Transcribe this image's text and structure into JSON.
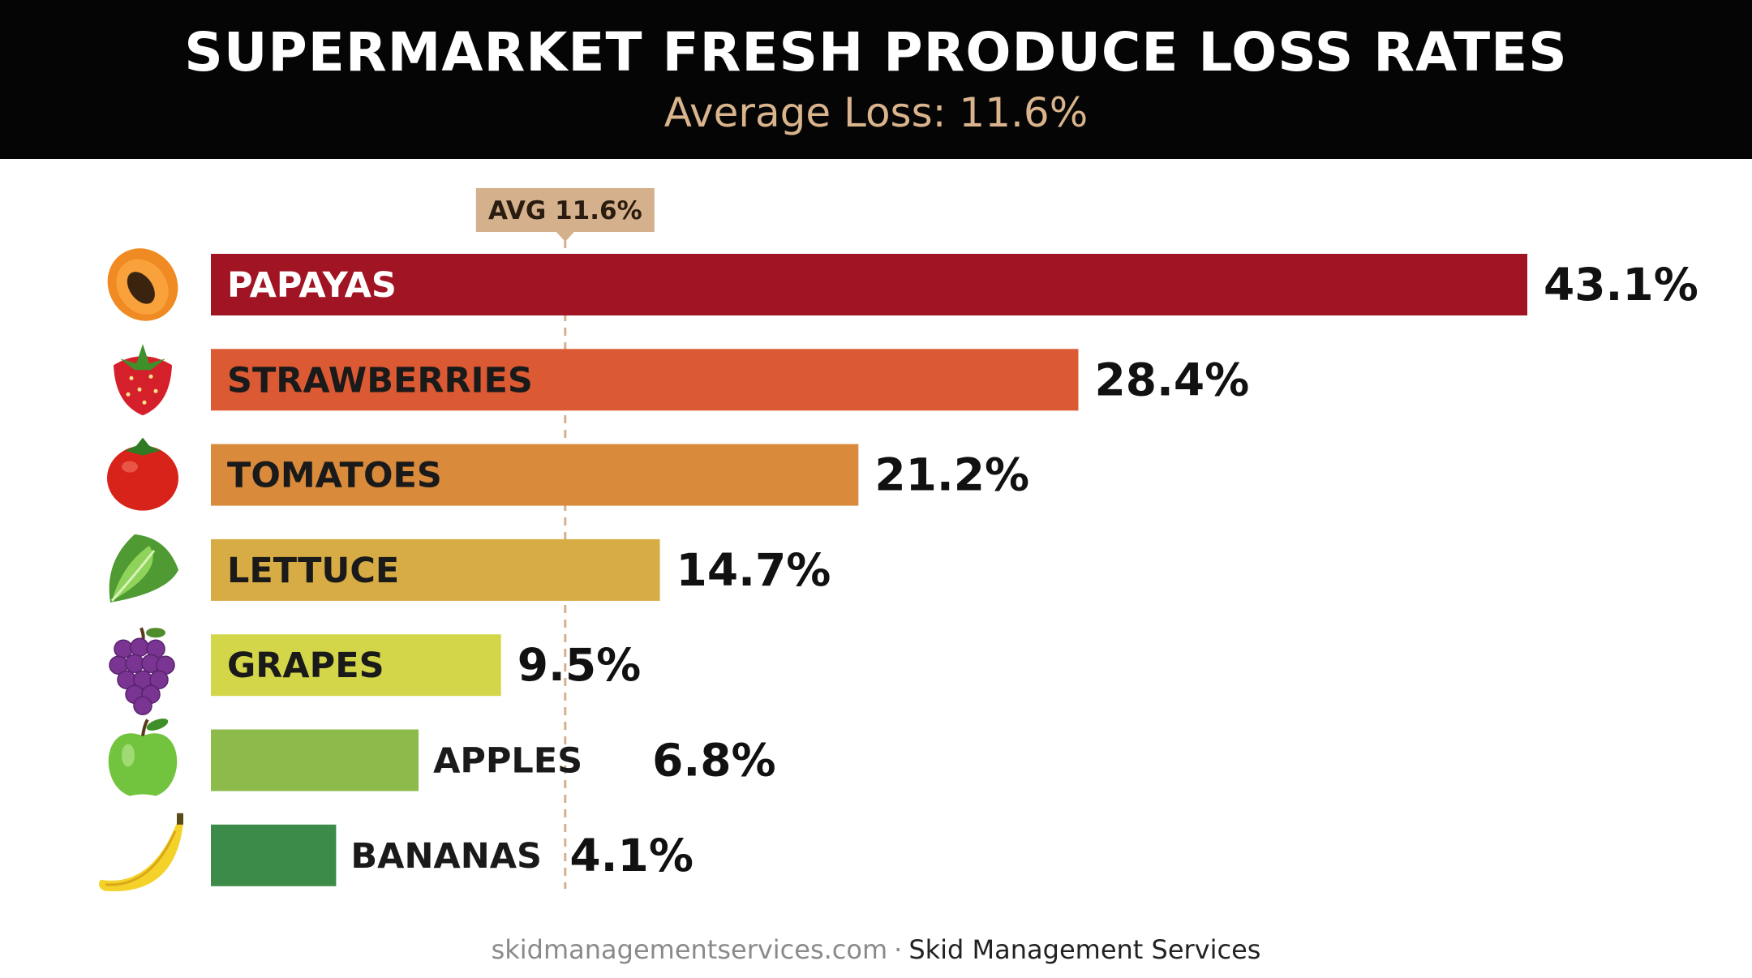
{
  "header": {
    "title": "SUPERMARKET FRESH PRODUCE LOSS RATES",
    "subtitle": "Average Loss: 11.6%"
  },
  "chart_data": {
    "type": "bar",
    "orientation": "horizontal",
    "title": "SUPERMARKET FRESH PRODUCE LOSS RATES",
    "subtitle": "Average Loss: 11.6%",
    "unit": "%",
    "xlim": [
      0,
      43.1
    ],
    "grid": false,
    "legend": "none",
    "categories": [
      "PAPAYAS",
      "STRAWBERRIES",
      "TOMATOES",
      "LETTUCE",
      "GRAPES",
      "APPLES",
      "BANANAS"
    ],
    "values": [
      43.1,
      28.4,
      21.2,
      14.7,
      9.5,
      6.8,
      4.1
    ],
    "value_labels": [
      "43.1%",
      "28.4%",
      "21.2%",
      "14.7%",
      "9.5%",
      "6.8%",
      "4.1%"
    ],
    "colors": [
      "#a01424",
      "#dc5a33",
      "#d98a3a",
      "#d8ac45",
      "#d4d64a",
      "#8cbb4c",
      "#3c8b49"
    ],
    "label_colors": [
      "#ffffff",
      "#1a1a1a",
      "#1a1a1a",
      "#1a1a1a",
      "#1a1a1a",
      "#1a1a1a",
      "#1a1a1a"
    ],
    "icons": [
      "papaya-icon",
      "strawberry-icon",
      "tomato-icon",
      "lettuce-icon",
      "grapes-icon",
      "apple-icon",
      "banana-icon"
    ],
    "reference_line": {
      "value": 11.6,
      "label": "AVG 11.6%",
      "color": "#d4b08c"
    }
  },
  "footer": {
    "site": "skidmanagementservices.com",
    "separator": "·",
    "company": "Skid Management Services"
  }
}
